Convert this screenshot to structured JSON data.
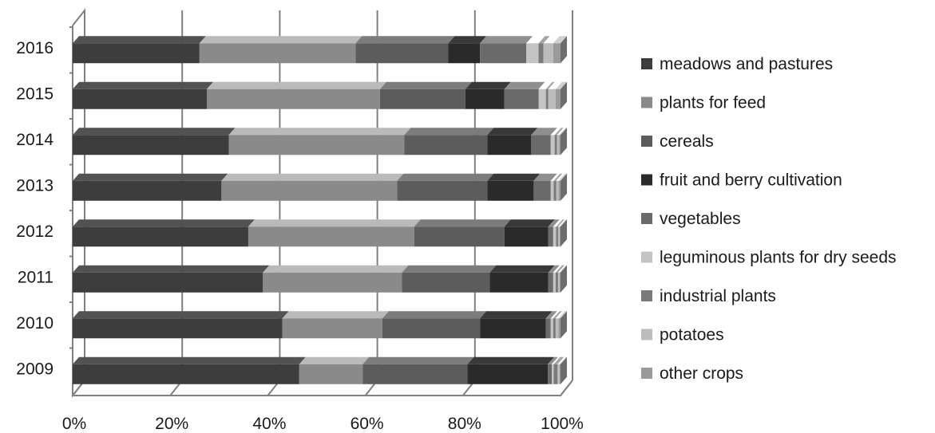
{
  "chart_data": {
    "type": "bar",
    "orientation": "horizontal",
    "stacked": "percent",
    "style": "3d",
    "title": "",
    "xlabel": "",
    "ylabel": "",
    "xlim": [
      0,
      100
    ],
    "x_ticks": [
      "0%",
      "20%",
      "40%",
      "60%",
      "80%",
      "100%"
    ],
    "grid": true,
    "legend_position": "right",
    "categories": [
      "2016",
      "2015",
      "2014",
      "2013",
      "2012",
      "2011",
      "2010",
      "2009"
    ],
    "series": [
      {
        "name": "meadows and pastures",
        "color": "#3d3d3d",
        "values": [
          26,
          27.5,
          32,
          30.5,
          36,
          39,
          43,
          46.5
        ]
      },
      {
        "name": "plants for feed",
        "color": "#8a8a8a",
        "values": [
          32,
          35.5,
          36,
          36,
          34,
          28.5,
          20.5,
          13
        ]
      },
      {
        "name": "cereals",
        "color": "#5c5c5c",
        "values": [
          19,
          17.5,
          17,
          18.5,
          18.5,
          18,
          20,
          21.5
        ]
      },
      {
        "name": "fruit and berry cultivation",
        "color": "#2a2a2a",
        "values": [
          6.5,
          8,
          9,
          9.5,
          9,
          12,
          13.5,
          16.5
        ]
      },
      {
        "name": "vegetables",
        "color": "#6a6a6a",
        "values": [
          9.5,
          7,
          4,
          3.5,
          1,
          1,
          1,
          0.8
        ]
      },
      {
        "name": "leguminous plants for dry seeds",
        "color": "#c4c4c4",
        "values": [
          2.5,
          1.5,
          0.8,
          0.6,
          0.6,
          0.5,
          0.5,
          0.4
        ]
      },
      {
        "name": "industrial plants",
        "color": "#7a7a7a",
        "values": [
          1,
          0.5,
          0.5,
          0.5,
          0.4,
          0.5,
          0.5,
          0.8
        ]
      },
      {
        "name": "potatoes",
        "color": "#bcbcbc",
        "values": [
          2,
          1.5,
          0.4,
          0.5,
          0.3,
          0.3,
          0.6,
          0.4
        ]
      },
      {
        "name": "other crops",
        "color": "#9a9a9a",
        "values": [
          1.5,
          1,
          0.3,
          0.4,
          0.2,
          0.2,
          0.4,
          0.2
        ]
      }
    ]
  }
}
